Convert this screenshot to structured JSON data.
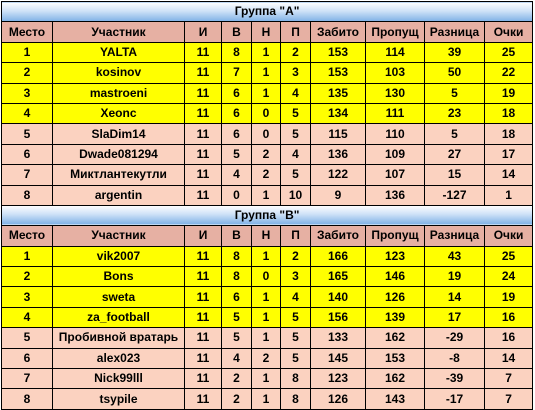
{
  "headers": [
    "Место",
    "Участник",
    "И",
    "В",
    "Н",
    "П",
    "Забито",
    "Пропущ",
    "Разница",
    "Очки"
  ],
  "colors": {
    "promoted_row": "#ffff00",
    "other_row": "#fbd2c0",
    "header_row": "#e6b0a3",
    "title_bar": "#9cc3ec"
  },
  "groups": [
    {
      "title": "Группа \"А\"",
      "rows": [
        {
          "place": "1",
          "player": "YALTA",
          "played": "11",
          "won": "8",
          "drawn": "1",
          "lost": "2",
          "scored": "153",
          "conceded": "114",
          "diff": "39",
          "points": "25",
          "highlight": "yellow"
        },
        {
          "place": "2",
          "player": "kosinov",
          "played": "11",
          "won": "7",
          "drawn": "1",
          "lost": "3",
          "scored": "153",
          "conceded": "103",
          "diff": "50",
          "points": "22",
          "highlight": "yellow"
        },
        {
          "place": "3",
          "player": "mastroeni",
          "played": "11",
          "won": "6",
          "drawn": "1",
          "lost": "4",
          "scored": "135",
          "conceded": "130",
          "diff": "5",
          "points": "19",
          "highlight": "yellow"
        },
        {
          "place": "4",
          "player": "Xeonc",
          "played": "11",
          "won": "6",
          "drawn": "0",
          "lost": "5",
          "scored": "134",
          "conceded": "111",
          "diff": "23",
          "points": "18",
          "highlight": "yellow"
        },
        {
          "place": "5",
          "player": "SlaDim14",
          "played": "11",
          "won": "6",
          "drawn": "0",
          "lost": "5",
          "scored": "115",
          "conceded": "110",
          "diff": "5",
          "points": "18",
          "highlight": "pink"
        },
        {
          "place": "6",
          "player": "Dwade081294",
          "played": "11",
          "won": "5",
          "drawn": "2",
          "lost": "4",
          "scored": "136",
          "conceded": "109",
          "diff": "27",
          "points": "17",
          "highlight": "pink"
        },
        {
          "place": "7",
          "player": "Миктлантекутли",
          "played": "11",
          "won": "4",
          "drawn": "2",
          "lost": "5",
          "scored": "122",
          "conceded": "107",
          "diff": "15",
          "points": "14",
          "highlight": "pink"
        },
        {
          "place": "8",
          "player": "argentin",
          "played": "11",
          "won": "0",
          "drawn": "1",
          "lost": "10",
          "scored": "9",
          "conceded": "136",
          "diff": "-127",
          "points": "1",
          "highlight": "pink"
        }
      ]
    },
    {
      "title": "Группа \"В\"",
      "rows": [
        {
          "place": "1",
          "player": "vik2007",
          "played": "11",
          "won": "8",
          "drawn": "1",
          "lost": "2",
          "scored": "166",
          "conceded": "123",
          "diff": "43",
          "points": "25",
          "highlight": "yellow"
        },
        {
          "place": "2",
          "player": "Bons",
          "played": "11",
          "won": "8",
          "drawn": "0",
          "lost": "3",
          "scored": "165",
          "conceded": "146",
          "diff": "19",
          "points": "24",
          "highlight": "yellow"
        },
        {
          "place": "3",
          "player": "sweta",
          "played": "11",
          "won": "6",
          "drawn": "1",
          "lost": "4",
          "scored": "140",
          "conceded": "126",
          "diff": "14",
          "points": "19",
          "highlight": "yellow"
        },
        {
          "place": "4",
          "player": "za_football",
          "played": "11",
          "won": "5",
          "drawn": "1",
          "lost": "5",
          "scored": "156",
          "conceded": "139",
          "diff": "17",
          "points": "16",
          "highlight": "yellow"
        },
        {
          "place": "5",
          "player": "Пробивной вратарь",
          "played": "11",
          "won": "5",
          "drawn": "1",
          "lost": "5",
          "scored": "133",
          "conceded": "162",
          "diff": "-29",
          "points": "16",
          "highlight": "pink"
        },
        {
          "place": "6",
          "player": "alex023",
          "played": "11",
          "won": "4",
          "drawn": "2",
          "lost": "5",
          "scored": "145",
          "conceded": "153",
          "diff": "-8",
          "points": "14",
          "highlight": "pink"
        },
        {
          "place": "7",
          "player": "Nick99lll",
          "played": "11",
          "won": "2",
          "drawn": "1",
          "lost": "8",
          "scored": "123",
          "conceded": "162",
          "diff": "-39",
          "points": "7",
          "highlight": "pink"
        },
        {
          "place": "8",
          "player": "tsypile",
          "played": "11",
          "won": "2",
          "drawn": "1",
          "lost": "8",
          "scored": "126",
          "conceded": "143",
          "diff": "-17",
          "points": "7",
          "highlight": "pink"
        }
      ]
    }
  ]
}
